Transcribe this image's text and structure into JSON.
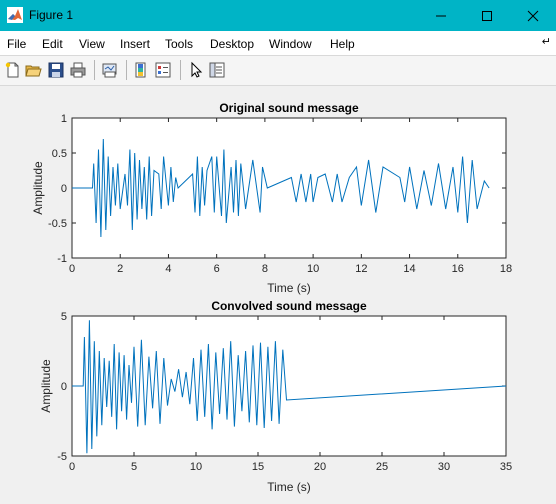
{
  "window": {
    "title": "Figure 1",
    "icon": "matlab-logo-icon"
  },
  "menu": [
    "File",
    "Edit",
    "View",
    "Insert",
    "Tools",
    "Desktop",
    "Window",
    "Help"
  ],
  "menu_overflow_icon": "arrow-icon",
  "toolbar": [
    "new-figure-icon",
    "open-file-icon",
    "save-icon",
    "print-icon",
    "link-plot-icon",
    "colorbar-icon",
    "legend-icon",
    "edit-plot-arrow-icon",
    "property-inspector-icon"
  ],
  "colors": {
    "titlebar": "#00b4c6",
    "series": "#0072bd"
  },
  "chart_data": [
    {
      "type": "line",
      "title": "Original sound message",
      "xlabel": "Time (s)",
      "ylabel": "Amplitude",
      "xlim": [
        0,
        18
      ],
      "ylim": [
        -1,
        1
      ],
      "xticks": [
        0,
        2,
        4,
        6,
        8,
        10,
        12,
        14,
        16,
        18
      ],
      "yticks": [
        -1,
        -0.5,
        0,
        0.5,
        1
      ],
      "ytick_labels": [
        "-1",
        "-0.5",
        "0",
        "0.5",
        "1"
      ],
      "grid": false,
      "series": [
        {
          "x": [
            0,
            0.85,
            0.9,
            1.0,
            1.1,
            1.2,
            1.3,
            1.4,
            1.5,
            1.6,
            1.7,
            1.8,
            1.9,
            2.0,
            2.2,
            2.3,
            2.4,
            2.5,
            2.6,
            2.7,
            2.8,
            2.9,
            3.0,
            3.1,
            3.2,
            3.3,
            3.4,
            3.6,
            3.7,
            3.8,
            4.0,
            4.1,
            4.2,
            4.3,
            4.4,
            5.0,
            5.1,
            5.2,
            5.3,
            5.4,
            5.5,
            5.6,
            5.8,
            5.9,
            6.0,
            6.2,
            6.3,
            6.4,
            6.6,
            6.7,
            6.8,
            6.9,
            7.0,
            7.2,
            7.5,
            7.8,
            7.9,
            8.1,
            9.1,
            9.3,
            9.5,
            9.7,
            9.9,
            10.0,
            10.2,
            10.5,
            10.8,
            11.0,
            11.2,
            11.5,
            11.8,
            12.0,
            12.3,
            12.6,
            12.9,
            13.6,
            13.8,
            14.0,
            14.3,
            14.6,
            14.9,
            15.2,
            15.5,
            15.8,
            16.0,
            16.2,
            16.4,
            16.6,
            16.8,
            17.1,
            17.3
          ],
          "y": [
            0,
            0,
            0.35,
            -0.5,
            0.55,
            -0.7,
            0.7,
            -0.6,
            0.45,
            -0.4,
            0.3,
            -0.25,
            0.35,
            -0.3,
            0.2,
            -0.25,
            0.55,
            -0.6,
            0.5,
            -0.45,
            0.4,
            -0.3,
            0.3,
            -0.45,
            0.45,
            -0.4,
            0.25,
            0.2,
            -0.3,
            0.45,
            -0.25,
            0.3,
            -0.2,
            0.15,
            0,
            0.2,
            -0.35,
            0.45,
            -0.4,
            0.3,
            -0.25,
            0.25,
            0.45,
            -0.35,
            0.45,
            -0.4,
            0.55,
            -0.5,
            0.3,
            -0.35,
            0.4,
            -0.4,
            0.35,
            -0.3,
            0.4,
            -0.35,
            0.3,
            0,
            0.15,
            -0.2,
            0.2,
            -0.2,
            0.2,
            -0.2,
            0.15,
            0.2,
            -0.2,
            0.2,
            -0.2,
            0.15,
            0.3,
            -0.25,
            0.4,
            -0.35,
            0.3,
            0.15,
            -0.2,
            0.3,
            -0.3,
            0.25,
            -0.25,
            0.35,
            -0.3,
            0.3,
            -0.35,
            0.45,
            -0.5,
            0.4,
            -0.3,
            0.1,
            0
          ]
        }
      ]
    },
    {
      "type": "line",
      "title": "Convolved sound message",
      "xlabel": "Time (s)",
      "ylabel": "Amplitude",
      "xlim": [
        0,
        35
      ],
      "ylim": [
        -5,
        5
      ],
      "xticks": [
        0,
        5,
        10,
        15,
        20,
        25,
        30,
        35
      ],
      "yticks": [
        -5,
        0,
        5
      ],
      "ytick_labels": [
        "-5",
        "0",
        "5"
      ],
      "grid": false,
      "series": [
        {
          "x": [
            0,
            0.9,
            1.0,
            1.2,
            1.4,
            1.6,
            1.8,
            2.0,
            2.2,
            2.4,
            2.6,
            2.8,
            3.0,
            3.2,
            3.4,
            3.6,
            3.8,
            4.0,
            4.2,
            4.4,
            4.6,
            4.8,
            5.0,
            5.3,
            5.6,
            5.9,
            6.2,
            6.5,
            6.8,
            7.1,
            7.4,
            7.7,
            8.0,
            8.3,
            8.6,
            8.9,
            9.2,
            9.5,
            9.8,
            10.1,
            10.4,
            10.7,
            11.0,
            11.3,
            11.6,
            11.9,
            12.2,
            12.5,
            12.8,
            13.1,
            13.4,
            13.7,
            14.0,
            14.3,
            14.6,
            14.9,
            15.2,
            15.5,
            15.8,
            16.1,
            16.4,
            16.7,
            17.0,
            17.3,
            35
          ],
          "y": [
            0,
            0,
            3.5,
            -4.8,
            4.7,
            -4.5,
            3.2,
            -3.6,
            2.5,
            -2.8,
            2.0,
            -1.5,
            1.8,
            -2.2,
            3.0,
            -3.1,
            2.4,
            -1.8,
            2.2,
            -2.4,
            1.5,
            -1.2,
            2.8,
            -2.9,
            3.3,
            -2.8,
            2.1,
            -1.6,
            2.5,
            -2.7,
            2.0,
            -1.4,
            0.5,
            -0.4,
            1.2,
            -0.8,
            1.0,
            -1.3,
            2.0,
            -2.5,
            2.6,
            -2.2,
            3.0,
            -3.1,
            2.4,
            -2.0,
            2.7,
            -2.4,
            3.2,
            -2.9,
            2.2,
            -1.8,
            2.5,
            -2.6,
            2.9,
            -2.8,
            3.1,
            -3.0,
            2.8,
            -2.5,
            3.2,
            -2.7,
            2.6,
            -1.0,
            0
          ]
        }
      ]
    }
  ]
}
